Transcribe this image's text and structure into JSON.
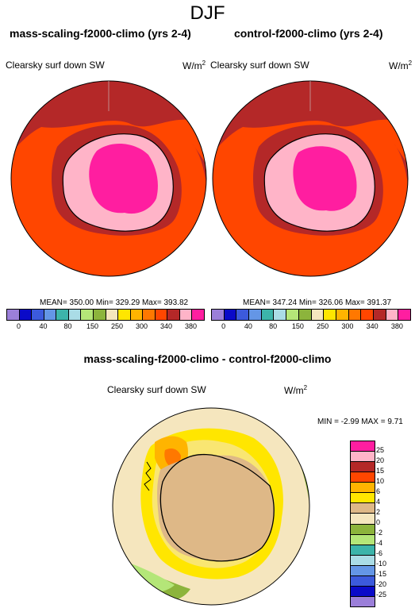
{
  "figure": {
    "season": "DJF",
    "left_panel": {
      "title": "mass-scaling-f2000-climo (yrs 2-4)",
      "variable": "Clearsky surf down SW",
      "units": "W/m",
      "units_sup": "2",
      "stats": "MEAN= 350.00  Min= 329.29  Max= 393.82"
    },
    "right_panel": {
      "title": "control-f2000-climo (yrs 2-4)",
      "variable": "Clearsky surf down SW",
      "units": "W/m",
      "units_sup": "2",
      "stats": "MEAN= 347.24  Min= 326.06  Max= 391.37"
    },
    "diff_panel": {
      "title": "mass-scaling-f2000-climo - control-f2000-climo",
      "variable": "Clearsky surf down SW",
      "units": "W/m",
      "units_sup": "2",
      "stats": "MIN =  -2.99 MAX =   9.71"
    },
    "colorbar_top": {
      "colors": [
        "#9b7fd9",
        "#0a0ac8",
        "#3c5adc",
        "#6496e6",
        "#3cb4aa",
        "#aadce6",
        "#b4e678",
        "#8cb43c",
        "#f5e6be",
        "#ffe600",
        "#ffb400",
        "#ff7800",
        "#ff4600",
        "#b42828",
        "#ffb4c8",
        "#ff1ea0"
      ],
      "labels": [
        "0",
        "40",
        "80",
        "150",
        "250",
        "300",
        "340",
        "380"
      ],
      "labels_full": [
        "0",
        "40",
        "80",
        "150",
        "250",
        "300",
        "340",
        "380"
      ]
    },
    "colorbar_diff": {
      "colors": [
        "#ff1ea0",
        "#ffb4c8",
        "#b42828",
        "#ff4600",
        "#ffb400",
        "#ffe600",
        "#deb887",
        "#f5e6be",
        "#8cb43c",
        "#b4e678",
        "#3cb4aa",
        "#aadce6",
        "#6496e6",
        "#3c5adc",
        "#0a0ac8",
        "#9b7fd9"
      ],
      "labels": [
        "25",
        "20",
        "15",
        "10",
        "6",
        "4",
        "2",
        "0",
        "-2",
        "-4",
        "-6",
        "-10",
        "-15",
        "-20",
        "-25"
      ]
    }
  }
}
